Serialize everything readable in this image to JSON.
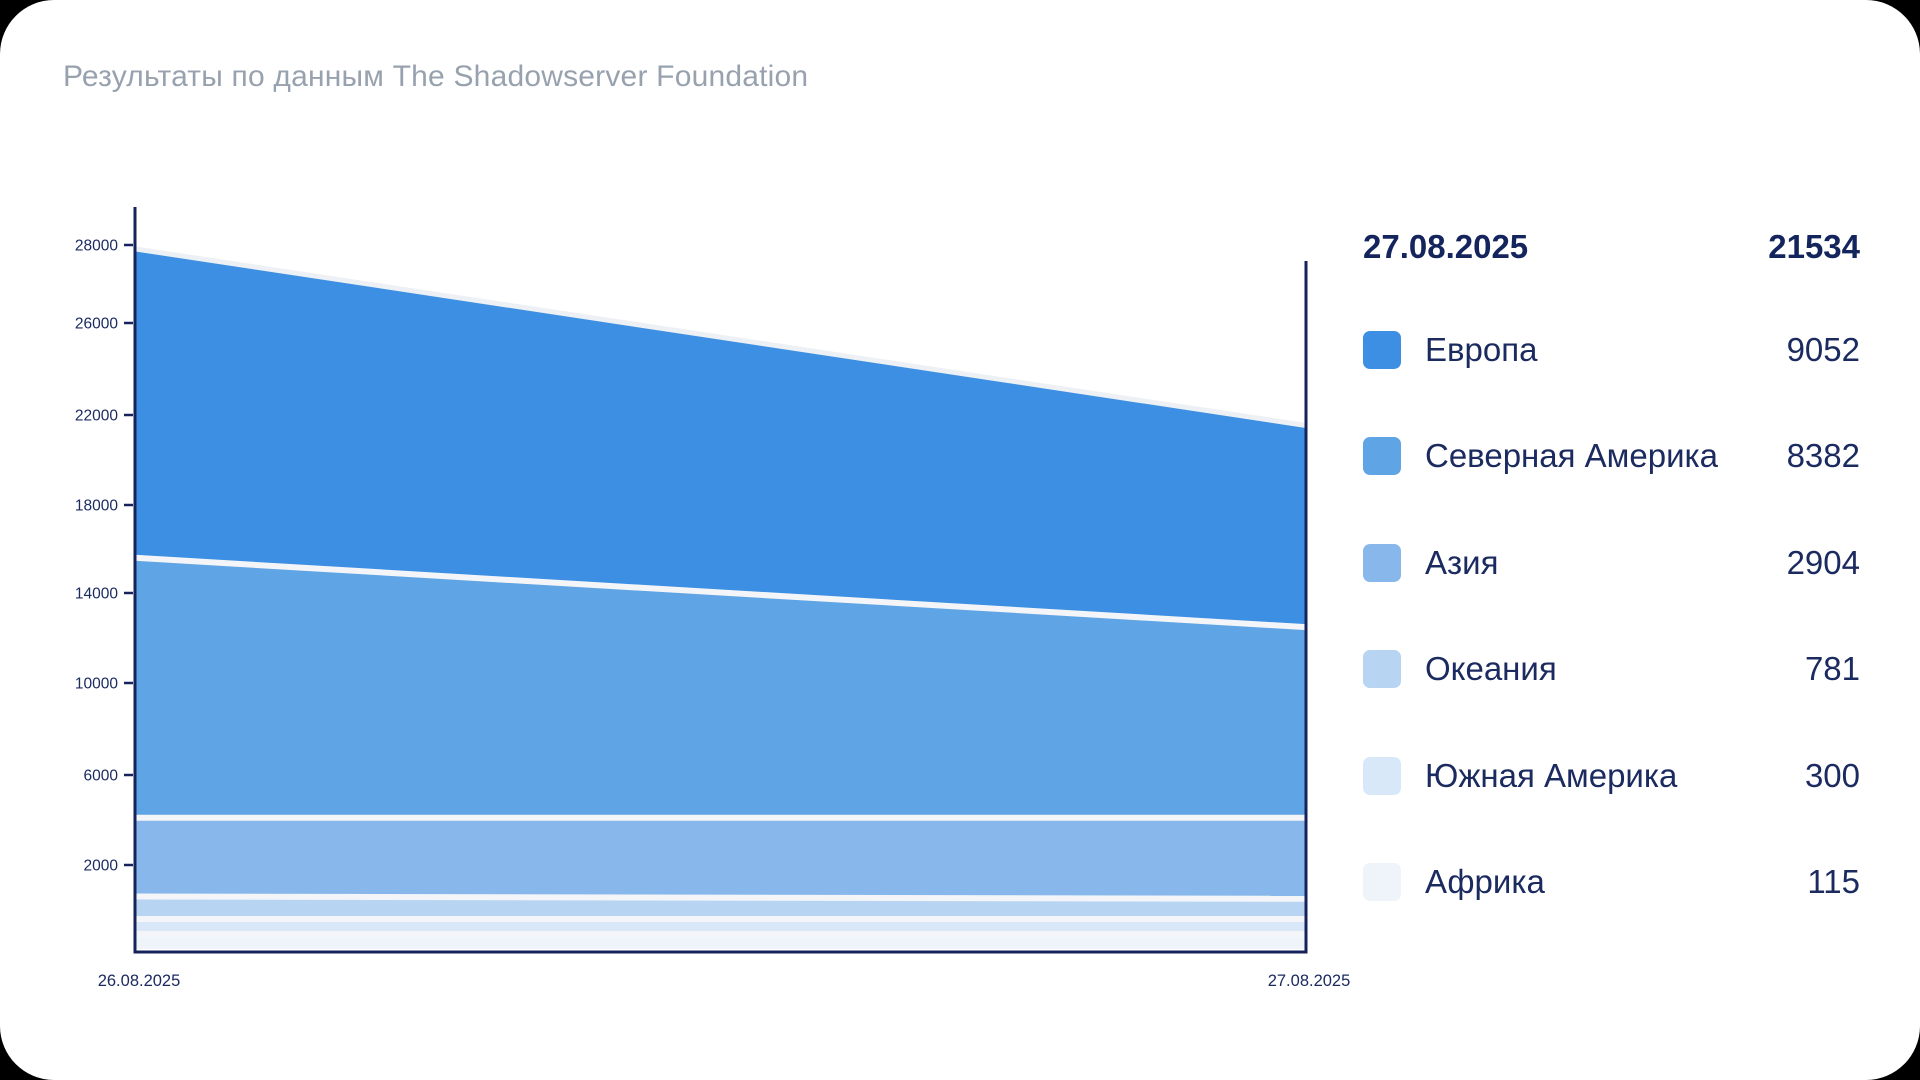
{
  "title": "Результаты по данным The Shadowserver Foundation",
  "legend": {
    "header_date": "27.08.2025",
    "header_total": "21534"
  },
  "colors": {
    "page_bg": "#000000",
    "card_bg": "#ffffff",
    "title_text": "#98a2af",
    "navy_text": "#1b2b60",
    "axis_line": "#16235a",
    "boundary_gap": "#f3f5f8",
    "top_edge": "#edf0f4"
  },
  "chart_data": {
    "type": "area",
    "stacked": true,
    "title": "Результаты по данным The Shadowserver Foundation",
    "x": [
      "26.08.2025",
      "27.08.2025"
    ],
    "y_ticks": [
      2000,
      6000,
      10000,
      14000,
      18000,
      22000,
      26000,
      28000
    ],
    "ylim": [
      0,
      28000
    ],
    "grid": false,
    "legend_position": "right",
    "values_26_08_estimated": true,
    "total_27_08": 21534,
    "series": [
      {
        "key": "europe",
        "name": "Европа",
        "color": "#3c8fe2",
        "values": [
          12300,
          9052
        ]
      },
      {
        "key": "north-america",
        "name": "Северная Америка",
        "color": "#5fa4e4",
        "values": [
          11500,
          8382
        ]
      },
      {
        "key": "asia",
        "name": "Азия",
        "color": "#88b8eb",
        "values": [
          2850,
          2904
        ]
      },
      {
        "key": "oceania",
        "name": "Океания",
        "color": "#b7d4f3",
        "values": [
          800,
          781
        ]
      },
      {
        "key": "south-america",
        "name": "Южная Америка",
        "color": "#d9e8f9",
        "values": [
          320,
          300
        ]
      },
      {
        "key": "africa",
        "name": "Африка",
        "color": "#eff4fb",
        "values": [
          130,
          115
        ]
      }
    ]
  }
}
